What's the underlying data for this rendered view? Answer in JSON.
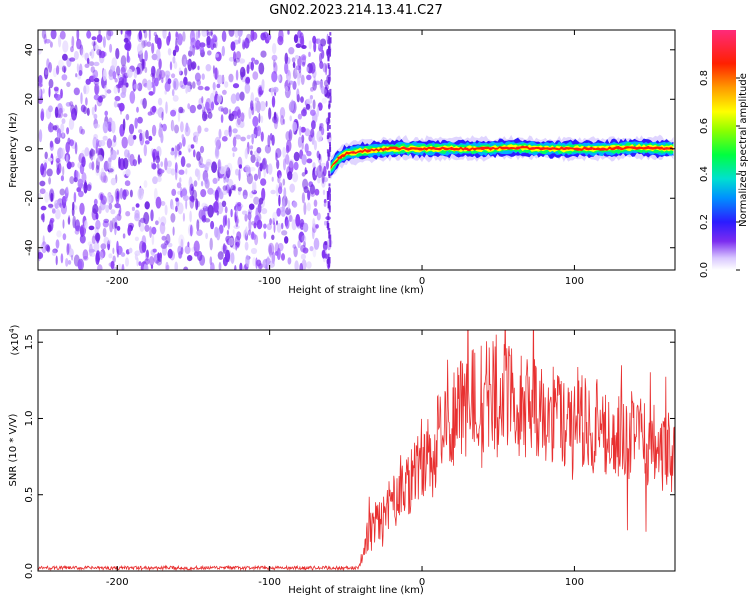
{
  "title": "GN02.2023.214.13.41.C27",
  "chart_data": [
    {
      "type": "heatmap",
      "xlabel": "Height of straight line (km)",
      "ylabel": "Frequency (Hz)",
      "xlim": [
        -252,
        166
      ],
      "ylim": [
        -49,
        48
      ],
      "xticks": [
        -200,
        -100,
        0,
        100
      ],
      "yticks": [
        -40,
        -20,
        0,
        20,
        40
      ],
      "noise_region_x": [
        -252,
        -60
      ],
      "signal_track": {
        "x": [
          -60,
          -55,
          -50,
          -40,
          -30,
          -20,
          0,
          20,
          40,
          60,
          80,
          100,
          120,
          140,
          166
        ],
        "y": [
          -8,
          -4,
          -2,
          -1,
          -0.5,
          0,
          0,
          0,
          0,
          0.5,
          0,
          0,
          0,
          0.5,
          0
        ],
        "half_width_hz": 2.5
      },
      "colorbar": {
        "label": "Normalized spectral amplitude",
        "range": [
          0.0,
          1.0
        ],
        "ticks": [
          "0.0",
          "0.2",
          "0.4",
          "0.6",
          "0.8"
        ]
      },
      "grid": false
    },
    {
      "type": "line",
      "xlabel": "Height of straight line (km)",
      "ylabel": "SNR (10 * V/V)",
      "multiplier_label": "(x10",
      "multiplier_exp": "4",
      "xlim": [
        -252,
        166
      ],
      "ylim": [
        0,
        1.58
      ],
      "xticks": [
        -200,
        -100,
        0,
        100
      ],
      "yticks": [
        "0.0",
        "0.5",
        "1.0",
        "1.5"
      ],
      "color": "#e83030",
      "series": [
        {
          "name": "",
          "x": [
            -252,
            -200,
            -150,
            -100,
            -50,
            -42,
            -40,
            -38,
            -35,
            -30,
            -20,
            -10,
            0,
            10,
            20,
            30,
            40,
            50,
            60,
            70,
            80,
            90,
            100,
            110,
            120,
            130,
            140,
            150,
            166
          ],
          "y": [
            0.02,
            0.02,
            0.02,
            0.02,
            0.02,
            0.02,
            0.05,
            0.15,
            0.25,
            0.32,
            0.45,
            0.55,
            0.7,
            0.88,
            1.02,
            1.12,
            1.15,
            1.14,
            1.12,
            1.08,
            1.05,
            1.0,
            0.97,
            0.96,
            0.95,
            0.92,
            0.88,
            0.82,
            0.78
          ]
        }
      ],
      "grid": false
    }
  ],
  "colors": {
    "noise": "#7a2cf0",
    "line": "#e83030",
    "axes": "#000000"
  }
}
